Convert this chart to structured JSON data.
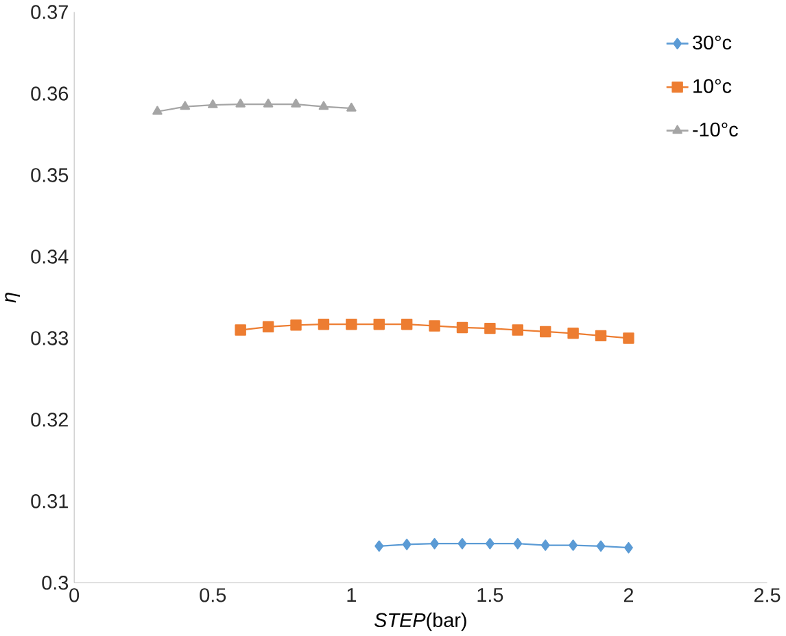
{
  "chart_data": {
    "type": "line",
    "xlabel": "*STEP*(bar)",
    "ylabel": "*η*",
    "xlim": [
      0,
      2.5
    ],
    "xticks": [
      0,
      0.5,
      1,
      1.5,
      2,
      2.5
    ],
    "ylim": [
      0.3,
      0.37
    ],
    "yticks": [
      0.3,
      0.31,
      0.32,
      0.33,
      0.34,
      0.35,
      0.36,
      0.37
    ],
    "grid": false,
    "legend": "top right",
    "series": [
      {
        "name": "30°c",
        "color": "#5b9bd5",
        "marker": "diamond",
        "x": [
          1.1,
          1.2,
          1.3,
          1.4,
          1.5,
          1.6,
          1.7,
          1.8,
          1.9,
          2.0
        ],
        "values": [
          0.3045,
          0.3047,
          0.3048,
          0.3048,
          0.3048,
          0.3048,
          0.3046,
          0.3046,
          0.3045,
          0.3043
        ]
      },
      {
        "name": "10°c",
        "color": "#ed7d31",
        "marker": "square",
        "x": [
          0.6,
          0.7,
          0.8,
          0.9,
          1.0,
          1.1,
          1.2,
          1.3,
          1.4,
          1.5,
          1.6,
          1.7,
          1.8,
          1.9,
          2.0
        ],
        "values": [
          0.331,
          0.3314,
          0.3316,
          0.3317,
          0.3317,
          0.3317,
          0.3317,
          0.3315,
          0.3313,
          0.3312,
          0.331,
          0.3308,
          0.3306,
          0.3303,
          0.33
        ]
      },
      {
        "name": "-10°c",
        "color": "#a5a5a5",
        "marker": "triangle",
        "x": [
          0.3,
          0.4,
          0.5,
          0.6,
          0.7,
          0.8,
          0.9,
          1.0
        ],
        "values": [
          0.3578,
          0.3584,
          0.3586,
          0.3587,
          0.3587,
          0.3587,
          0.3584,
          0.3582
        ]
      }
    ]
  }
}
